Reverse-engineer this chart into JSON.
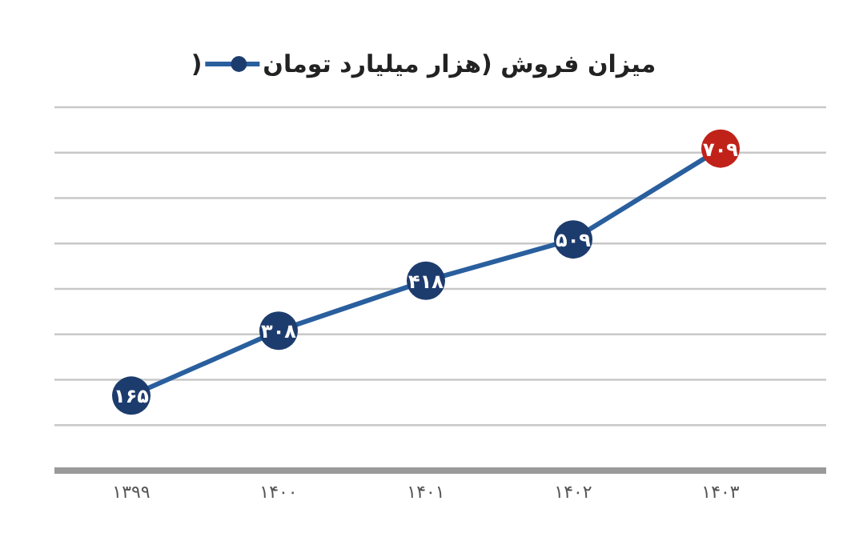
{
  "chart_data": {
    "type": "line",
    "title": "میزان فروش (هزار میلیارد تومان )",
    "categories": [
      "۱۳۹۹",
      "۱۴۰۰",
      "۱۴۰۱",
      "۱۴۰۲",
      "۱۴۰۳"
    ],
    "series": [
      {
        "color": "#2a5f9e",
        "colors": [
          "#1d3c6e",
          "#1d3c6e",
          "#1d3c6e",
          "#1d3c6e",
          "#c0221a"
        ],
        "values": [
          165,
          308,
          418,
          509,
          709
        ],
        "value_labels": [
          "۱۶۵",
          "۳۰۸",
          "۴۱۸",
          "۵۰۹",
          "۷۰۹"
        ]
      }
    ],
    "ylim": [
      0,
      800
    ],
    "yticks": [
      {
        "value": 100,
        "label": null
      },
      {
        "value": 200,
        "label": null
      },
      {
        "value": 300,
        "label": null
      },
      {
        "value": 400,
        "label": null
      },
      {
        "value": 500,
        "label": null
      },
      {
        "value": 600,
        "label": null
      },
      {
        "value": 700,
        "label": null
      },
      {
        "value": 800,
        "label": null
      }
    ],
    "grid": "y",
    "tick_labels": "x",
    "marker": "circle"
  }
}
